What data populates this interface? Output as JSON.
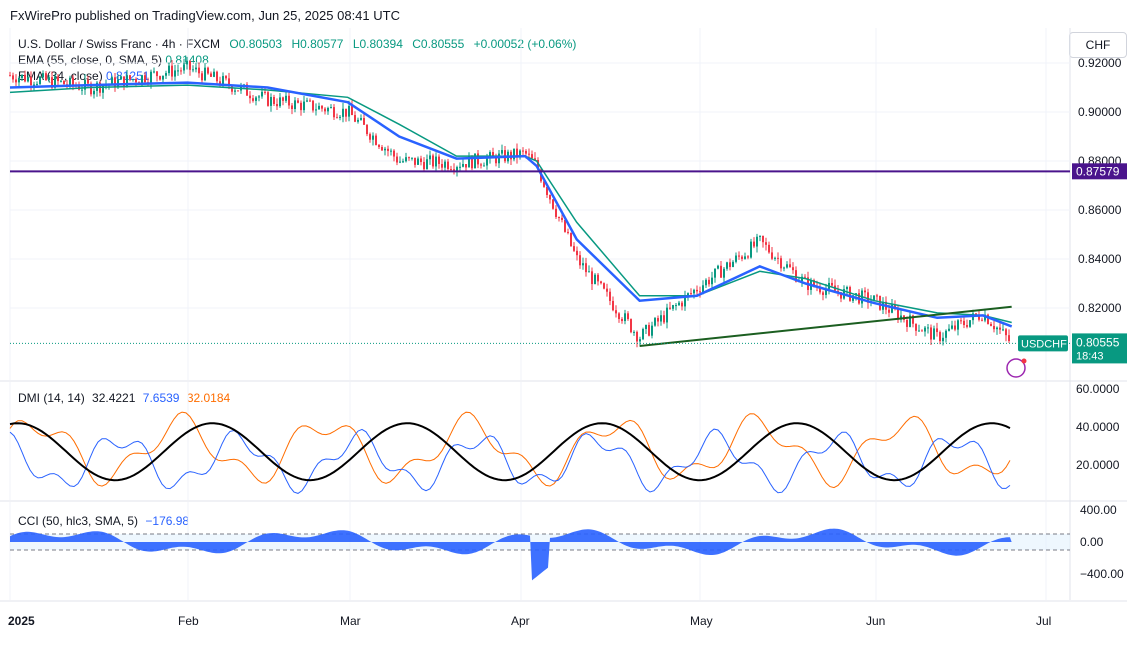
{
  "header": {
    "publisher": "FxWirePro published on TradingView.com, Jun 25, 2025 08:41 UTC"
  },
  "main_legend": {
    "symbol": "U.S. Dollar / Swiss Franc · 4h · FXCM",
    "o": "O0.80503",
    "h": "H0.80577",
    "l": "L0.80394",
    "c": "C0.80555",
    "chg": "+0.00052 (+0.06%)",
    "ema55_label": "EMA (55, close, 0, SMA, 5)",
    "ema55_val": "0.81408",
    "ema34_label": "EMA (34, close)",
    "ema34_val": "0.81251"
  },
  "currency_button": "CHF",
  "price_axis": {
    "ticks": [
      "0.92000",
      "0.90000",
      "0.88000",
      "0.86000",
      "0.84000",
      "0.82000"
    ],
    "level_tag": "0.87579",
    "last_tag": "0.80555",
    "timer": "18:43",
    "symbol_tag": "USDCHF"
  },
  "dmi_legend": {
    "label": "DMI (14, 14)",
    "adx": "32.4221",
    "pdi": "7.6539",
    "mdi": "32.0184"
  },
  "dmi_axis": [
    "60.0000",
    "40.0000",
    "20.0000"
  ],
  "cci_legend": {
    "label": "CCI (50, hlc3, SMA, 5)",
    "value": "−176.98"
  },
  "cci_axis": [
    "400.00",
    "0.00",
    "−400.00"
  ],
  "time_axis": [
    "2025",
    "Feb",
    "Mar",
    "Apr",
    "May",
    "Jun",
    "Jul"
  ],
  "colors": {
    "up": "#089981",
    "down": "#f23645",
    "ema55": "#089981",
    "ema34": "#2962ff",
    "level": "#4a148c",
    "trend": "#1b5e20",
    "dmi_adx": "#000000",
    "dmi_pdi": "#2962ff",
    "dmi_mdi": "#ff6d00",
    "cci": "#2962ff"
  },
  "chart_data": {
    "type": "line",
    "title": "U.S. Dollar / Swiss Franc · 4h · FXCM",
    "x": [
      "2025-01-01",
      "2025-01-15",
      "2025-02-01",
      "2025-02-15",
      "2025-03-01",
      "2025-03-10",
      "2025-03-20",
      "2025-04-01",
      "2025-04-03",
      "2025-04-10",
      "2025-04-21",
      "2025-05-01",
      "2025-05-12",
      "2025-05-20",
      "2025-06-01",
      "2025-06-12",
      "2025-06-20",
      "2025-06-25"
    ],
    "series": [
      {
        "name": "EMA (55, close, 0, SMA, 5)",
        "values": [
          0.908,
          0.91,
          0.911,
          0.909,
          0.906,
          0.895,
          0.882,
          0.882,
          0.88,
          0.855,
          0.825,
          0.825,
          0.835,
          0.832,
          0.823,
          0.818,
          0.817,
          0.8141
        ]
      },
      {
        "name": "EMA (34, close)",
        "values": [
          0.91,
          0.911,
          0.912,
          0.91,
          0.904,
          0.89,
          0.881,
          0.882,
          0.878,
          0.848,
          0.823,
          0.825,
          0.837,
          0.83,
          0.822,
          0.816,
          0.817,
          0.8125
        ]
      }
    ],
    "close": [
      0.915,
      0.91,
      0.918,
      0.905,
      0.9,
      0.88,
      0.879,
      0.883,
      0.878,
      0.84,
      0.808,
      0.828,
      0.847,
      0.83,
      0.823,
      0.808,
      0.818,
      0.80555
    ],
    "levels": {
      "horizontal": 0.87579,
      "trendline": [
        [
          "2025-04-21",
          0.8045
        ],
        [
          "2025-06-25",
          0.8205
        ]
      ]
    },
    "ylim": [
      0.8,
      0.925
    ],
    "dmi": {
      "ylim": [
        0,
        60
      ],
      "adx_last": 32.4221,
      "pdi_last": 7.6539,
      "mdi_last": 32.0184
    },
    "cci": {
      "ylim": [
        -520,
        400
      ],
      "last": -176.98
    }
  }
}
